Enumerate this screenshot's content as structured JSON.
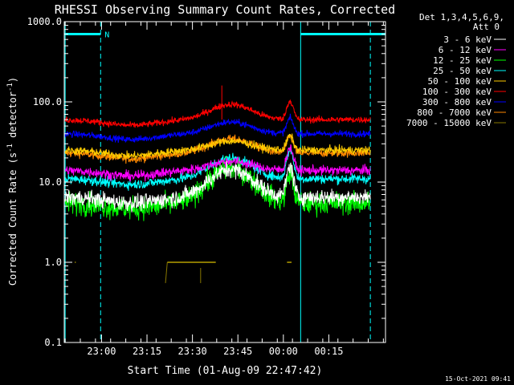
{
  "chart_data": {
    "type": "line",
    "title": "RHESSI Observing Summary Count Rates, Corrected",
    "xlabel": "Start Time (01-Aug-09 22:47:42)",
    "ylabel": "Corrected Count Rate (s",
    "ylabel_sup1": "-1",
    "ylabel_mid": " detector",
    "ylabel_sup2": "-1",
    "ylabel_end": ")",
    "yscale": "log",
    "ylim": [
      0.1,
      1000
    ],
    "xlim_minutes": [
      0,
      106
    ],
    "y_ticks": [
      {
        "value": 1000,
        "label": "1000.0"
      },
      {
        "value": 100,
        "label": "100.0"
      },
      {
        "value": 10,
        "label": "10.0"
      },
      {
        "value": 1,
        "label": "1.0"
      },
      {
        "value": 0.1,
        "label": "0.1"
      }
    ],
    "x_ticks": [
      {
        "minute": 12.3,
        "label": "23:00"
      },
      {
        "minute": 27.3,
        "label": "23:15"
      },
      {
        "minute": 42.3,
        "label": "23:30"
      },
      {
        "minute": 57.3,
        "label": "23:45"
      },
      {
        "minute": 72.3,
        "label": "00:00"
      },
      {
        "minute": 87.3,
        "label": "00:15"
      }
    ],
    "legend_header": [
      "Det 1,3,4,5,6,9,",
      "Att 0"
    ],
    "legend_position": "top-right outside",
    "series": [
      {
        "name": "3 - 6 keV",
        "color": "#ffffff",
        "base": 6.5,
        "bump": 2.2,
        "flare": 2.4,
        "noise": 0.05
      },
      {
        "name": "6 - 12 keV",
        "color": "#ff00ff",
        "base": 14,
        "bump": 1.3,
        "flare": 1.9,
        "noise": 0.03
      },
      {
        "name": "12 - 25 keV",
        "color": "#00ff00",
        "base": 5.5,
        "bump": 2.7,
        "flare": 2.3,
        "noise": 0.07
      },
      {
        "name": "25 - 50 keV",
        "color": "#00ffff",
        "base": 11,
        "bump": 1.8,
        "flare": 2.3,
        "noise": 0.03
      },
      {
        "name": "50 - 100 keV",
        "color": "#ffcc00",
        "base": 25,
        "bump": 1.3,
        "flare": 1.5,
        "noise": 0.025
      },
      {
        "name": "100 - 300 keV",
        "color": "#ff0000",
        "base": 60,
        "bump": 1.55,
        "flare": 1.7,
        "noise": 0.02
      },
      {
        "name": "300 - 800 keV",
        "color": "#0000ff",
        "base": 40,
        "bump": 1.4,
        "flare": 1.55,
        "noise": 0.02
      },
      {
        "name": "800 - 7000 keV",
        "color": "#ff8800",
        "base": 23,
        "bump": 1.5,
        "flare": 1.6,
        "noise": 0.025
      },
      {
        "name": "7000 - 15000 keV",
        "color": "#887700",
        "base": null,
        "bump": 1,
        "flare": 1,
        "noise": 0
      }
    ],
    "envelope": {
      "start": 0.3,
      "end": 101
    },
    "bump": {
      "center": 55,
      "width": 9
    },
    "flare": {
      "center": 74.5,
      "width": 1.4
    },
    "intervals": [
      {
        "kind": "night",
        "label": "N",
        "start": 0,
        "end": 12,
        "level": 700
      },
      {
        "kind": "night",
        "label": "",
        "start": 78,
        "end": 106,
        "level": 700
      }
    ],
    "vertical_markers": [
      {
        "minute": 0.3,
        "style": "solid"
      },
      {
        "minute": 12,
        "style": "dashed"
      },
      {
        "minute": 78,
        "style": "solid"
      },
      {
        "minute": 101,
        "style": "dashed"
      }
    ],
    "spikes": [
      {
        "minute": 52,
        "value": 160
      }
    ],
    "footer_date": "15-Oct-2021 09:41"
  }
}
